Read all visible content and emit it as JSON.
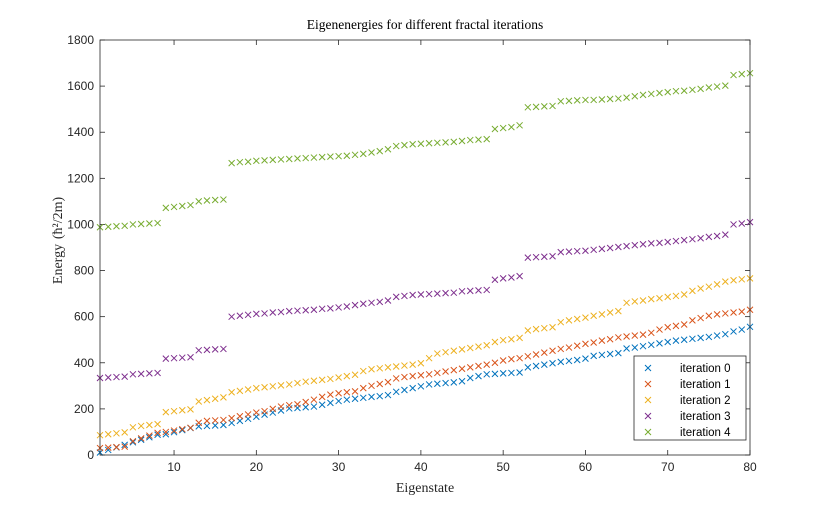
{
  "chart_data": {
    "type": "scatter",
    "title": "Eigenenergies for different fractal iterations",
    "xlabel": "Eigenstate",
    "ylabel": "Energy",
    "ylabel_unit": "(ħ²/2m)",
    "xlim": [
      1,
      80
    ],
    "ylim": [
      0,
      1800
    ],
    "xticks": [
      10,
      20,
      30,
      40,
      50,
      60,
      70,
      80
    ],
    "yticks": [
      0,
      200,
      400,
      600,
      800,
      1000,
      1200,
      1400,
      1600,
      1800
    ],
    "marker": "x",
    "legend_position": "bottom-right",
    "series": [
      {
        "name": "iteration 0",
        "color": "#0072BD",
        "values": [
          11,
          22,
          33,
          44,
          55,
          66,
          77,
          88,
          90,
          99,
          108,
          117,
          124,
          126,
          128,
          130,
          139,
          148,
          157,
          166,
          175,
          184,
          193,
          202,
          204,
          207,
          210,
          218,
          226,
          234,
          240,
          244,
          248,
          252,
          255,
          260,
          274,
          282,
          290,
          298,
          306,
          309,
          312,
          315,
          320,
          334,
          342,
          350,
          352,
          354,
          356,
          358,
          380,
          386,
          392,
          398,
          404,
          408,
          412,
          418,
          430,
          434,
          438,
          442,
          462,
          466,
          472,
          478,
          484,
          490,
          496,
          500,
          504,
          508,
          512,
          518,
          524,
          536,
          544,
          556
        ]
      },
      {
        "name": "iteration 1",
        "color": "#D95319",
        "values": [
          30,
          32,
          34,
          36,
          60,
          72,
          84,
          96,
          100,
          106,
          112,
          118,
          140,
          148,
          150,
          152,
          160,
          168,
          176,
          184,
          190,
          200,
          210,
          216,
          220,
          230,
          240,
          252,
          262,
          268,
          272,
          276,
          290,
          300,
          308,
          316,
          332,
          338,
          342,
          346,
          350,
          356,
          362,
          368,
          374,
          380,
          386,
          392,
          400,
          410,
          416,
          420,
          428,
          436,
          444,
          452,
          460,
          466,
          474,
          482,
          488,
          496,
          502,
          510,
          514,
          518,
          522,
          530,
          544,
          554,
          560,
          566,
          584,
          594,
          604,
          610,
          614,
          618,
          622,
          630
        ]
      },
      {
        "name": "iteration 2",
        "color": "#EDB120",
        "values": [
          86,
          90,
          94,
          98,
          120,
          126,
          130,
          134,
          186,
          190,
          194,
          198,
          232,
          238,
          244,
          250,
          272,
          278,
          284,
          290,
          294,
          298,
          302,
          306,
          312,
          318,
          322,
          326,
          330,
          336,
          342,
          348,
          364,
          372,
          376,
          380,
          384,
          388,
          392,
          398,
          420,
          440,
          446,
          452,
          458,
          464,
          470,
          476,
          490,
          498,
          502,
          508,
          540,
          546,
          550,
          554,
          576,
          584,
          590,
          596,
          604,
          610,
          618,
          624,
          660,
          666,
          670,
          676,
          680,
          686,
          690,
          696,
          712,
          722,
          730,
          740,
          752,
          758,
          762,
          766
        ]
      },
      {
        "name": "iteration 3",
        "color": "#7E2F8E",
        "values": [
          334,
          336,
          338,
          340,
          350,
          352,
          354,
          356,
          418,
          420,
          422,
          424,
          454,
          456,
          458,
          460,
          600,
          604,
          608,
          612,
          614,
          618,
          620,
          624,
          626,
          628,
          630,
          634,
          636,
          640,
          644,
          650,
          656,
          660,
          664,
          670,
          686,
          690,
          694,
          696,
          698,
          700,
          702,
          704,
          710,
          712,
          714,
          716,
          760,
          766,
          770,
          776,
          856,
          858,
          860,
          862,
          880,
          882,
          884,
          886,
          890,
          894,
          898,
          902,
          906,
          910,
          914,
          918,
          920,
          924,
          928,
          932,
          936,
          940,
          946,
          950,
          956,
          1000,
          1004,
          1010
        ]
      },
      {
        "name": "iteration 4",
        "color": "#77AC30",
        "values": [
          988,
          990,
          992,
          994,
          1000,
          1002,
          1004,
          1006,
          1072,
          1076,
          1080,
          1084,
          1100,
          1104,
          1106,
          1108,
          1266,
          1270,
          1272,
          1276,
          1278,
          1280,
          1282,
          1284,
          1286,
          1288,
          1290,
          1292,
          1294,
          1296,
          1298,
          1302,
          1306,
          1312,
          1318,
          1326,
          1340,
          1344,
          1348,
          1350,
          1352,
          1354,
          1356,
          1358,
          1362,
          1366,
          1368,
          1370,
          1414,
          1418,
          1422,
          1430,
          1508,
          1510,
          1512,
          1514,
          1534,
          1536,
          1538,
          1540,
          1540,
          1542,
          1544,
          1546,
          1550,
          1556,
          1562,
          1566,
          1570,
          1574,
          1578,
          1580,
          1584,
          1588,
          1594,
          1598,
          1602,
          1648,
          1652,
          1656
        ]
      }
    ]
  }
}
